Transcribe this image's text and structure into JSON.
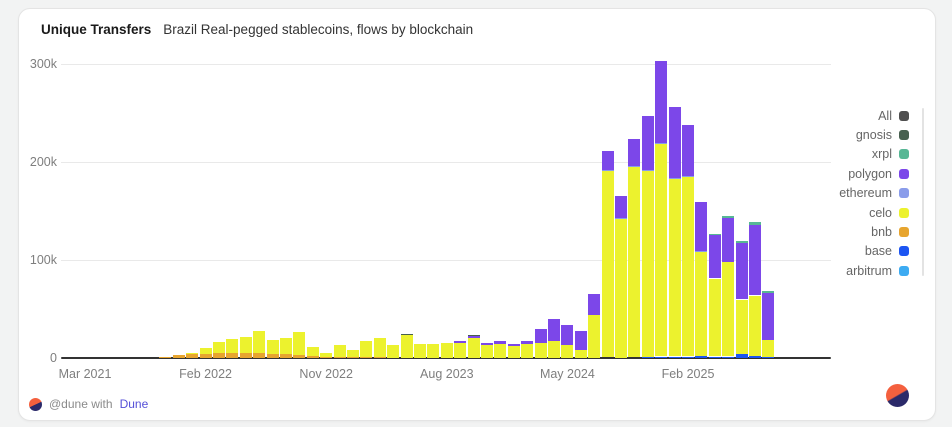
{
  "card": {
    "title": "Unique Transfers",
    "subtitle": "Brazil Real-pegged stablecoins, flows by blockchain"
  },
  "footer": {
    "attribution_prefix": "@dune with",
    "attribution_link": "Dune"
  },
  "colors": {
    "all": "#4f4f4f",
    "gnosis": "#47604f",
    "xrpl": "#57b795",
    "polygon": "#7c47e9",
    "ethereum": "#8a9cea",
    "celo": "#ecf22e",
    "bnb": "#e7a52f",
    "base": "#1c55f2",
    "arbitrum": "#3dabf2",
    "brand_orange": "#f4603e",
    "brand_navy": "#2b2a6a",
    "link": "#544fd8"
  },
  "legend": {
    "items": [
      {
        "label": "All",
        "color_key": "all"
      },
      {
        "label": "gnosis",
        "color_key": "gnosis"
      },
      {
        "label": "xrpl",
        "color_key": "xrpl"
      },
      {
        "label": "polygon",
        "color_key": "polygon"
      },
      {
        "label": "ethereum",
        "color_key": "ethereum"
      },
      {
        "label": "celo",
        "color_key": "celo"
      },
      {
        "label": "bnb",
        "color_key": "bnb"
      },
      {
        "label": "base",
        "color_key": "base"
      },
      {
        "label": "arbitrum",
        "color_key": "arbitrum"
      }
    ]
  },
  "chart_data": {
    "type": "bar",
    "stacked": true,
    "title": "Unique Transfers",
    "subtitle": "Brazil Real-pegged stablecoins, flows by blockchain",
    "xlabel": "",
    "ylabel": "",
    "unit": "unique transfers, values in thousands (k)",
    "n_bars": 52,
    "x_period": "monthly, Mar 2021 through mid 2025",
    "ylim_k": [
      0,
      310
    ],
    "grid": "horizontal",
    "legend_position": "right",
    "y_ticks": [
      {
        "value_k": 0,
        "label": "0"
      },
      {
        "value_k": 100,
        "label": "100k"
      },
      {
        "value_k": 200,
        "label": "200k"
      },
      {
        "value_k": 300,
        "label": "300k"
      }
    ],
    "x_ticks": [
      {
        "index": 0,
        "label": "Mar 2021"
      },
      {
        "index": 9,
        "label": "Feb 2022"
      },
      {
        "index": 18,
        "label": "Nov 2022"
      },
      {
        "index": 27,
        "label": "Aug 2023"
      },
      {
        "index": 36,
        "label": "May 2024"
      },
      {
        "index": 45,
        "label": "Feb 2025"
      }
    ],
    "stack_order_bottom_to_top": [
      "base",
      "bnb",
      "celo",
      "ethereum",
      "polygon",
      "gnosis",
      "xrpl",
      "arbitrum"
    ],
    "series": [
      {
        "name": "base",
        "color_key": "base",
        "values_k": [
          0,
          0,
          0,
          0,
          0,
          0,
          0,
          0,
          0,
          0,
          0,
          0,
          0,
          0,
          0,
          0,
          0,
          0,
          0,
          0,
          0,
          0,
          0,
          0,
          0,
          0,
          0,
          0,
          0,
          0,
          0,
          0,
          0,
          0,
          0,
          0,
          0,
          0,
          0,
          0,
          0,
          0,
          1,
          1.5,
          1.5,
          1.5,
          2,
          1.5,
          1.5,
          4,
          2,
          1
        ]
      },
      {
        "name": "bnb",
        "color_key": "bnb",
        "values_k": [
          0.1,
          0.1,
          0.2,
          0.2,
          0.3,
          0.5,
          1,
          3,
          4,
          4,
          5,
          5,
          5,
          5,
          4,
          4,
          3,
          2,
          1,
          1,
          1,
          1,
          1,
          0.5,
          0.5,
          0.3,
          0.3,
          0.3,
          0.3,
          0.3,
          0.2,
          0.2,
          0.2,
          0.2,
          0.3,
          0.3,
          0.3,
          0.2,
          0.3,
          0.5,
          0.4,
          0.5,
          0.5,
          0.5,
          0.4,
          0.4,
          0.3,
          0.3,
          0.3,
          0.3,
          0.3,
          0.2
        ]
      },
      {
        "name": "celo",
        "color_key": "celo",
        "values_k": [
          0,
          0,
          0,
          0,
          0,
          0,
          0.5,
          0,
          1,
          6,
          11,
          14,
          16,
          23,
          14,
          16,
          24,
          9,
          4,
          12,
          7,
          16,
          19,
          13,
          23,
          14,
          14,
          15,
          15,
          20,
          13,
          14,
          12,
          14,
          15,
          17,
          13,
          8,
          44,
          190,
          142,
          194,
          189,
          216,
          181,
          183,
          106,
          79,
          96,
          55,
          61,
          17
        ]
      },
      {
        "name": "ethereum",
        "color_key": "ethereum",
        "values_k": [
          0,
          0,
          0,
          0,
          0,
          0,
          0,
          0,
          0,
          0,
          0,
          0,
          0,
          0,
          0,
          0,
          0,
          0,
          0,
          0,
          0,
          0,
          0,
          0,
          0,
          0,
          0,
          0,
          0,
          0,
          0,
          0,
          0,
          0,
          0.5,
          0.5,
          0,
          0,
          0,
          1,
          0.8,
          1,
          1,
          1.5,
          1,
          1,
          0.8,
          0.5,
          0.5,
          0.5,
          0.5,
          0.3
        ]
      },
      {
        "name": "polygon",
        "color_key": "polygon",
        "values_k": [
          0,
          0,
          0,
          0,
          0,
          0,
          0,
          0,
          0,
          0,
          0,
          0,
          0,
          0,
          0,
          0,
          0,
          0,
          0,
          0,
          0,
          0,
          0,
          0,
          0,
          0,
          0,
          0,
          2,
          2,
          2,
          3,
          2,
          3,
          14,
          22,
          20,
          19,
          21,
          20,
          22,
          28,
          55,
          84,
          72,
          52,
          50,
          44,
          45,
          58,
          72,
          48
        ]
      },
      {
        "name": "gnosis",
        "color_key": "gnosis",
        "values_k": [
          0,
          0,
          0,
          0,
          0,
          0,
          0,
          0,
          0,
          0,
          0,
          0,
          0,
          0,
          0,
          0,
          0,
          0,
          0,
          0,
          0,
          0,
          0,
          0,
          0.8,
          0,
          0,
          0,
          0,
          0.8,
          0,
          0,
          0,
          0,
          0,
          0,
          0,
          0,
          0,
          0,
          0,
          0,
          0,
          0,
          0,
          0,
          0,
          0,
          0,
          0,
          0,
          0
        ]
      },
      {
        "name": "xrpl",
        "color_key": "xrpl",
        "values_k": [
          0,
          0,
          0,
          0,
          0,
          0,
          0,
          0,
          0,
          0,
          0,
          0,
          0,
          0,
          0,
          0,
          0,
          0,
          0,
          0,
          0,
          0,
          0,
          0,
          0,
          0,
          0,
          0,
          0,
          0,
          0,
          0,
          0,
          0,
          0,
          0,
          0,
          0,
          0,
          0,
          0,
          0,
          0,
          0,
          0,
          0,
          0,
          1,
          1.5,
          2,
          3,
          2
        ]
      },
      {
        "name": "arbitrum",
        "color_key": "arbitrum",
        "values_k": [
          0,
          0,
          0,
          0,
          0,
          0,
          0,
          0,
          0,
          0,
          0,
          0,
          0,
          0,
          0,
          0,
          0,
          0,
          0,
          0,
          0,
          0,
          0,
          0,
          0,
          0,
          0,
          0,
          0,
          0,
          0,
          0,
          0,
          0,
          0,
          0,
          0,
          0,
          0,
          0,
          0,
          0,
          0,
          0.5,
          0.4,
          0.4,
          0,
          0,
          0,
          0.3,
          0.3,
          0
        ]
      }
    ]
  }
}
